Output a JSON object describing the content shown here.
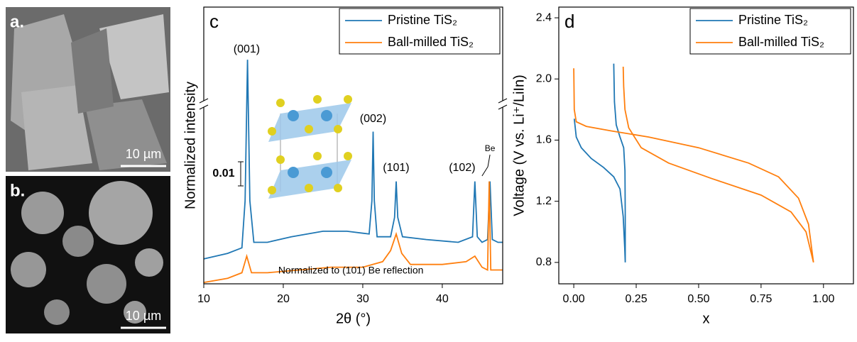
{
  "images": [
    {
      "label": "a.",
      "scale_bar": "10 µm"
    },
    {
      "label": "b.",
      "scale_bar": "10 µm"
    }
  ],
  "chart_data": [
    {
      "type": "line",
      "label": "c",
      "xlabel": "2θ (°)",
      "ylabel": "Normalized intensity",
      "xlim": [
        10,
        47.6
      ],
      "xticks": [
        10,
        20,
        30,
        40
      ],
      "ylim": [
        0,
        1
      ],
      "annotations": [
        "(001)",
        "(002)",
        "(101)",
        "(102)",
        "Be",
        "Normalized to (101) Be reflection",
        "0.01"
      ],
      "series": [
        {
          "name": "Pristine TiS₂",
          "color": "#1f77b4",
          "x": [
            10,
            13,
            14.8,
            15.2,
            15.5,
            15.8,
            16.3,
            18,
            21,
            25,
            28,
            30.8,
            31.15,
            31.3,
            31.45,
            31.8,
            33.5,
            34,
            34.2,
            34.4,
            35,
            38,
            42,
            43.8,
            44.1,
            44.4,
            45,
            45.7,
            46,
            46.3,
            47,
            47.6
          ],
          "values": [
            0.09,
            0.11,
            0.13,
            0.3,
            0.81,
            0.3,
            0.15,
            0.15,
            0.17,
            0.19,
            0.19,
            0.18,
            0.3,
            0.55,
            0.3,
            0.17,
            0.17,
            0.24,
            0.37,
            0.24,
            0.17,
            0.16,
            0.15,
            0.17,
            0.37,
            0.17,
            0.15,
            0.16,
            0.37,
            0.16,
            0.15,
            0.15
          ]
        },
        {
          "name": "Ball-milled TiS₂",
          "color": "#ff7f0e",
          "x": [
            10,
            13,
            14.8,
            15.4,
            16,
            18,
            22,
            26,
            30,
            32.5,
            33.5,
            34.2,
            34.9,
            36,
            40,
            43,
            44.1,
            45,
            45.7,
            45.9,
            46.1,
            46.4,
            47,
            47.6
          ],
          "values": [
            0.005,
            0.02,
            0.04,
            0.1,
            0.04,
            0.04,
            0.05,
            0.06,
            0.06,
            0.08,
            0.12,
            0.18,
            0.11,
            0.07,
            0.07,
            0.08,
            0.1,
            0.06,
            0.05,
            0.37,
            0.05,
            0.05,
            0.05,
            0.05
          ]
        }
      ]
    },
    {
      "type": "line",
      "label": "d",
      "xlabel": "x",
      "ylabel": "Voltage (V vs. Li⁺/LiIn)",
      "xlim": [
        -0.06,
        1.12
      ],
      "xticks": [
        {
          "value": 0,
          "label": "0.00"
        },
        0.25,
        {
          "value": 0.5,
          "label": "0.50"
        },
        0.75,
        {
          "value": 1,
          "label": "1.00"
        }
      ],
      "ylim": [
        0.66,
        2.47
      ],
      "yticks": [
        0.8,
        1.2,
        1.6,
        {
          "value": 2,
          "label": "2.0"
        },
        2.4
      ],
      "series": [
        {
          "name": "Pristine TiS₂",
          "color": "#1f77b4",
          "x": [
            0.002,
            0.01,
            0.03,
            0.07,
            0.12,
            0.16,
            0.185,
            0.198,
            0.204,
            0.206,
            0.206,
            0.205,
            0.2,
            0.185,
            0.17,
            0.163,
            0.16
          ],
          "values": [
            1.74,
            1.62,
            1.55,
            1.48,
            1.42,
            1.36,
            1.28,
            1.1,
            0.9,
            0.8,
            1.1,
            1.4,
            1.55,
            1.62,
            1.7,
            1.85,
            2.1
          ]
        },
        {
          "name": "Ball-milled TiS₂",
          "color": "#ff7f0e",
          "x": [
            0,
            0.002,
            0.01,
            0.05,
            0.15,
            0.3,
            0.5,
            0.7,
            0.82,
            0.9,
            0.94,
            0.96,
            0.93,
            0.87,
            0.75,
            0.55,
            0.38,
            0.27,
            0.22,
            0.205,
            0.2,
            0.198
          ],
          "values": [
            2.07,
            1.8,
            1.72,
            1.69,
            1.66,
            1.62,
            1.55,
            1.45,
            1.36,
            1.22,
            1.05,
            0.8,
            1.0,
            1.13,
            1.24,
            1.35,
            1.45,
            1.55,
            1.68,
            1.8,
            1.95,
            2.08
          ]
        }
      ]
    }
  ]
}
